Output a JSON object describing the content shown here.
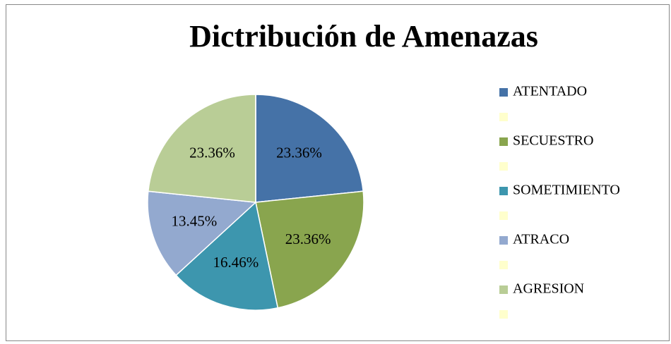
{
  "chart_data": {
    "type": "pie",
    "title": "Dictribución de Amenazas",
    "categories": [
      "ATENTADO",
      null,
      "SECUESTRO",
      null,
      "SOMETIMIENTO",
      null,
      "ATRACO",
      null,
      "AGRESION",
      null
    ],
    "values": [
      23.36,
      0,
      23.36,
      0,
      16.46,
      0,
      13.45,
      0,
      23.36,
      0
    ],
    "value_labels": [
      "23.36%",
      null,
      "23.36%",
      null,
      "16.46%",
      null,
      "13.45%",
      null,
      "23.36%",
      null
    ],
    "colors": [
      "#4572a7",
      "#ffffcc",
      "#89a54e",
      "#ffffcc",
      "#3d96ae",
      "#ffffcc",
      "#93a9cf",
      "#ffffcc",
      "#b9cd96",
      "#ffffcc"
    ],
    "legend": "right"
  }
}
